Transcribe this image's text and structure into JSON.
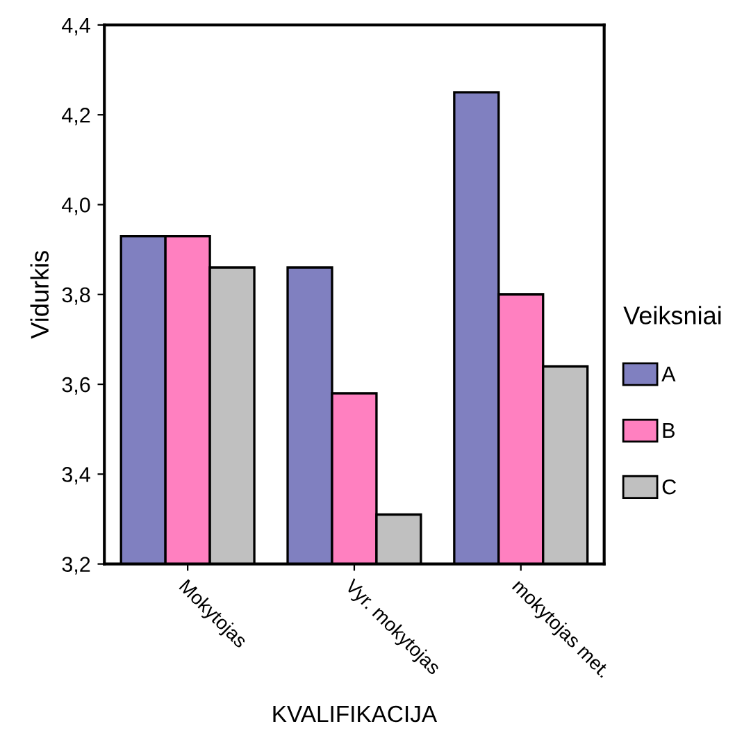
{
  "chart_data": {
    "type": "bar",
    "xlabel": "KVALIFIKACIJA",
    "ylabel": "Vidurkis",
    "legend_title": "Veiksniai",
    "categories": [
      "Mokytojas",
      "Vyr. mokytojas",
      "mokytojas met."
    ],
    "series": [
      {
        "name": "A",
        "color": "#8080c0",
        "values": [
          3.93,
          3.86,
          4.25
        ]
      },
      {
        "name": "B",
        "color": "#ff80c0",
        "values": [
          3.93,
          3.58,
          3.8
        ]
      },
      {
        "name": "C",
        "color": "#c0c0c0",
        "values": [
          3.86,
          3.31,
          3.64
        ]
      }
    ],
    "ylim": [
      3.2,
      4.4
    ],
    "yticks": [
      {
        "value": 3.2,
        "label": "3,2"
      },
      {
        "value": 3.4,
        "label": "3,4"
      },
      {
        "value": 3.6,
        "label": "3,6"
      },
      {
        "value": 3.8,
        "label": "3,8"
      },
      {
        "value": 4.0,
        "label": "4,0"
      },
      {
        "value": 4.2,
        "label": "4,2"
      },
      {
        "value": 4.4,
        "label": "4,4"
      }
    ],
    "grid": false,
    "legend": "right"
  }
}
